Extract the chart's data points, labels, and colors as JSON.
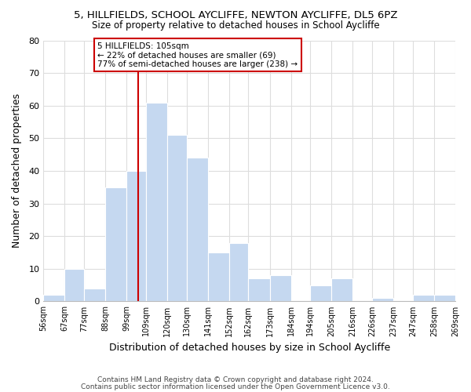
{
  "title": "5, HILLFIELDS, SCHOOL AYCLIFFE, NEWTON AYCLIFFE, DL5 6PZ",
  "subtitle": "Size of property relative to detached houses in School Aycliffe",
  "xlabel": "Distribution of detached houses by size in School Aycliffe",
  "ylabel": "Number of detached properties",
  "bar_color": "#c5d8f0",
  "bar_edge_color": "#ffffff",
  "bins": [
    56,
    67,
    77,
    88,
    99,
    109,
    120,
    130,
    141,
    152,
    162,
    173,
    184,
    194,
    205,
    216,
    226,
    237,
    247,
    258,
    269
  ],
  "counts": [
    2,
    10,
    4,
    35,
    40,
    61,
    51,
    44,
    15,
    18,
    7,
    8,
    0,
    5,
    7,
    0,
    1,
    0,
    2,
    2
  ],
  "tick_labels": [
    "56sqm",
    "67sqm",
    "77sqm",
    "88sqm",
    "99sqm",
    "109sqm",
    "120sqm",
    "130sqm",
    "141sqm",
    "152sqm",
    "162sqm",
    "173sqm",
    "184sqm",
    "194sqm",
    "205sqm",
    "216sqm",
    "226sqm",
    "237sqm",
    "247sqm",
    "258sqm",
    "269sqm"
  ],
  "vline_x": 105,
  "vline_color": "#cc0000",
  "annotation_text": "5 HILLFIELDS: 105sqm\n← 22% of detached houses are smaller (69)\n77% of semi-detached houses are larger (238) →",
  "annotation_box_edge_color": "#cc0000",
  "annotation_box_face_color": "#ffffff",
  "ylim": [
    0,
    80
  ],
  "yticks": [
    0,
    10,
    20,
    30,
    40,
    50,
    60,
    70,
    80
  ],
  "footer_line1": "Contains HM Land Registry data © Crown copyright and database right 2024.",
  "footer_line2": "Contains public sector information licensed under the Open Government Licence v3.0.",
  "background_color": "#ffffff",
  "grid_color": "#dddddd"
}
